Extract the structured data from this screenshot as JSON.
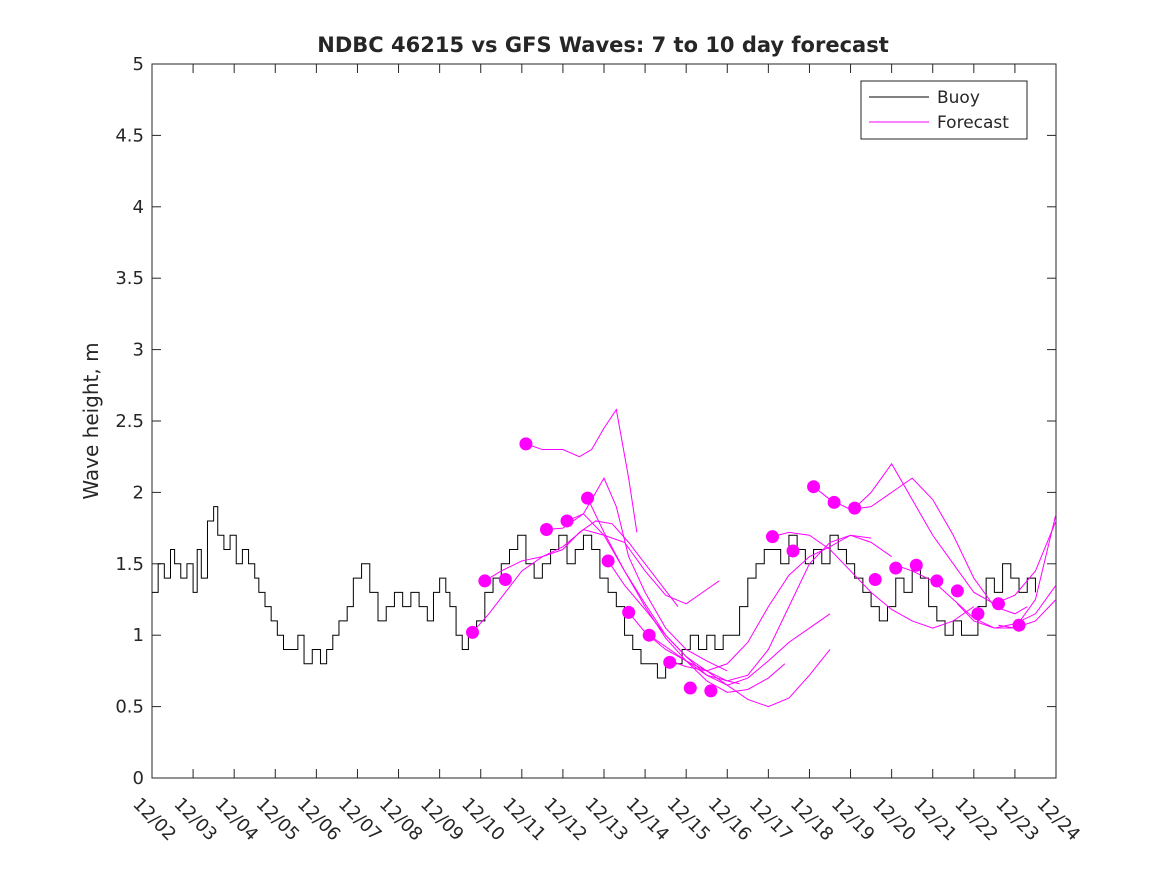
{
  "chart_data": {
    "type": "line",
    "title": "NDBC 46215 vs GFS Waves: 7 to 10 day forecast",
    "xlabel": "",
    "ylabel": "Wave height, m",
    "xlim": [
      0,
      22
    ],
    "ylim": [
      0,
      5
    ],
    "yticks": [
      0,
      0.5,
      1,
      1.5,
      2,
      2.5,
      3,
      3.5,
      4,
      4.5,
      5
    ],
    "ytick_labels": [
      "0",
      "0.5",
      "1",
      "1.5",
      "2",
      "2.5",
      "3",
      "3.5",
      "4",
      "4.5",
      "5"
    ],
    "xticks": [
      0,
      1,
      2,
      3,
      4,
      5,
      6,
      7,
      8,
      9,
      10,
      11,
      12,
      13,
      14,
      15,
      16,
      17,
      18,
      19,
      20,
      21,
      22
    ],
    "xtick_labels": [
      "12/02",
      "12/03",
      "12/04",
      "12/05",
      "12/06",
      "12/07",
      "12/08",
      "12/09",
      "12/10",
      "12/11",
      "12/12",
      "12/13",
      "12/14",
      "12/15",
      "12/16",
      "12/17",
      "12/18",
      "12/19",
      "12/20",
      "12/21",
      "12/22",
      "12/23",
      "12/24"
    ],
    "legend": {
      "location": "top-right",
      "entries": [
        {
          "label": "Buoy",
          "color": "#000000",
          "style": "line"
        },
        {
          "label": "Forecast",
          "color": "#ff00ff",
          "style": "line"
        }
      ]
    },
    "series": [
      {
        "name": "Buoy",
        "color": "#000000",
        "x": [
          0,
          0.15,
          0.3,
          0.45,
          0.55,
          0.7,
          0.85,
          1.0,
          1.1,
          1.2,
          1.35,
          1.5,
          1.6,
          1.75,
          1.9,
          2.05,
          2.2,
          2.35,
          2.5,
          2.6,
          2.75,
          2.9,
          3.05,
          3.2,
          3.4,
          3.55,
          3.7,
          3.9,
          4.1,
          4.25,
          4.4,
          4.55,
          4.75,
          4.9,
          5.1,
          5.3,
          5.5,
          5.7,
          5.9,
          6.1,
          6.3,
          6.5,
          6.7,
          6.85,
          7.0,
          7.15,
          7.25,
          7.4,
          7.55,
          7.7,
          7.9,
          8.1,
          8.3,
          8.5,
          8.7,
          8.9,
          9.1,
          9.3,
          9.5,
          9.7,
          9.9,
          10.1,
          10.3,
          10.5,
          10.7,
          10.9,
          11.1,
          11.3,
          11.5,
          11.7,
          11.9,
          12.1,
          12.3,
          12.5,
          12.7,
          12.9,
          13.1,
          13.3,
          13.5,
          13.7,
          13.9,
          14.1,
          14.3,
          14.5,
          14.7,
          14.9,
          15.1,
          15.3,
          15.5,
          15.7,
          15.9,
          16.1,
          16.3,
          16.5,
          16.7,
          16.9,
          17.1,
          17.3,
          17.5,
          17.7,
          17.9,
          18.1,
          18.3,
          18.5,
          18.7,
          18.9,
          19.1,
          19.3,
          19.5,
          19.7,
          19.9,
          20.1,
          20.3,
          20.5,
          20.7,
          20.9,
          21.1,
          21.3,
          21.5
        ],
        "values": [
          1.3,
          1.5,
          1.4,
          1.6,
          1.5,
          1.4,
          1.5,
          1.3,
          1.6,
          1.4,
          1.8,
          1.9,
          1.7,
          1.6,
          1.7,
          1.5,
          1.6,
          1.5,
          1.4,
          1.3,
          1.2,
          1.1,
          1.0,
          0.9,
          0.9,
          1.0,
          0.8,
          0.9,
          0.8,
          0.9,
          1.0,
          1.1,
          1.2,
          1.4,
          1.5,
          1.3,
          1.1,
          1.2,
          1.3,
          1.2,
          1.3,
          1.2,
          1.1,
          1.3,
          1.4,
          1.3,
          1.2,
          1.0,
          0.9,
          1.0,
          1.1,
          1.3,
          1.4,
          1.5,
          1.6,
          1.7,
          1.5,
          1.4,
          1.5,
          1.6,
          1.7,
          1.5,
          1.6,
          1.7,
          1.6,
          1.4,
          1.3,
          1.2,
          1.0,
          0.9,
          0.8,
          0.8,
          0.7,
          0.8,
          0.8,
          0.9,
          1.0,
          0.9,
          1.0,
          0.9,
          1.0,
          1.0,
          1.2,
          1.4,
          1.5,
          1.6,
          1.6,
          1.5,
          1.7,
          1.6,
          1.5,
          1.6,
          1.5,
          1.7,
          1.6,
          1.5,
          1.4,
          1.3,
          1.2,
          1.1,
          1.2,
          1.4,
          1.3,
          1.5,
          1.4,
          1.2,
          1.1,
          1.0,
          1.1,
          1.0,
          1.0,
          1.2,
          1.4,
          1.3,
          1.5,
          1.4,
          1.3,
          1.4,
          1.3
        ]
      },
      {
        "name": "Forecast",
        "color": "#ff00ff",
        "runs": [
          {
            "x": [
              7.8,
              8.2,
              8.6,
              9.0,
              9.5,
              10.0,
              10.4,
              10.8,
              11.2,
              11.6,
              12.0,
              12.4,
              12.8
            ],
            "values": [
              1.02,
              1.15,
              1.3,
              1.45,
              1.55,
              1.6,
              1.72,
              1.8,
              1.78,
              1.65,
              1.5,
              1.35,
              1.2
            ]
          },
          {
            "x": [
              8.1,
              8.5,
              9.0,
              9.5,
              10.0,
              10.5,
              11.0,
              11.5,
              12.0,
              12.5,
              13.0,
              13.5,
              13.8
            ],
            "values": [
              1.38,
              1.45,
              1.52,
              1.55,
              1.62,
              1.74,
              1.7,
              1.65,
              1.45,
              1.28,
              1.22,
              1.32,
              1.38
            ]
          },
          {
            "x": [
              9.1,
              9.5,
              10.0,
              10.4,
              10.7,
              11.0,
              11.3,
              11.6,
              11.8
            ],
            "values": [
              2.34,
              2.3,
              2.3,
              2.25,
              2.3,
              2.45,
              2.58,
              2.1,
              1.72
            ]
          },
          {
            "x": [
              9.6,
              10.0,
              10.5,
              11.0,
              11.3,
              11.6,
              12.0,
              12.5,
              13.0,
              13.5,
              14.0
            ],
            "values": [
              1.74,
              1.75,
              1.85,
              2.1,
              1.9,
              1.55,
              1.3,
              1.05,
              0.9,
              0.82,
              0.75
            ]
          },
          {
            "x": [
              10.1,
              10.5,
              11.0,
              11.5,
              12.0,
              12.5,
              13.0,
              13.5,
              14.0,
              14.3
            ],
            "values": [
              1.8,
              1.85,
              1.7,
              1.45,
              1.22,
              1.0,
              0.85,
              0.75,
              0.68,
              0.66
            ]
          },
          {
            "x": [
              10.6,
              11.0,
              11.5,
              12.0,
              12.5,
              13.0,
              13.5,
              14.0,
              14.5,
              15.0,
              15.4
            ],
            "values": [
              1.96,
              1.72,
              1.45,
              1.2,
              0.98,
              0.82,
              0.68,
              0.6,
              0.62,
              0.7,
              0.8
            ]
          },
          {
            "x": [
              11.1,
              11.5,
              12.0,
              12.5,
              13.0,
              13.5,
              14.0,
              14.5,
              15.0,
              15.5,
              16.0,
              16.5
            ],
            "values": [
              1.52,
              1.35,
              1.18,
              1.0,
              0.85,
              0.72,
              0.65,
              0.7,
              0.82,
              0.95,
              1.05,
              1.15
            ]
          },
          {
            "x": [
              11.6,
              12.0,
              12.5,
              13.0,
              13.5,
              14.0,
              14.5,
              15.0,
              15.5,
              16.0,
              16.5
            ],
            "values": [
              1.16,
              1.02,
              0.9,
              0.82,
              0.75,
              0.65,
              0.55,
              0.5,
              0.56,
              0.72,
              0.9
            ]
          },
          {
            "x": [
              12.1,
              12.5,
              13.0,
              13.5,
              14.0,
              14.5,
              15.0,
              15.5,
              16.0,
              16.5,
              17.0,
              17.5
            ],
            "values": [
              1.0,
              0.92,
              0.82,
              0.72,
              0.68,
              0.72,
              0.9,
              1.2,
              1.5,
              1.65,
              1.7,
              1.68
            ]
          },
          {
            "x": [
              12.6,
              13.0,
              13.5,
              14.0,
              14.5,
              15.0,
              15.5,
              16.0,
              16.5,
              17.0,
              17.5,
              18.0
            ],
            "values": [
              0.82,
              0.78,
              0.75,
              0.8,
              0.95,
              1.2,
              1.42,
              1.55,
              1.62,
              1.7,
              1.65,
              1.55
            ]
          },
          {
            "x": [
              15.1,
              15.5,
              16.0,
              16.5,
              17.0,
              17.5,
              18.0,
              18.5,
              19.0,
              19.5,
              20.0
            ],
            "values": [
              1.69,
              1.72,
              1.7,
              1.6,
              1.45,
              1.3,
              1.18,
              1.1,
              1.05,
              1.1,
              1.2
            ]
          },
          {
            "x": [
              16.1,
              16.5,
              17.0,
              17.5,
              18.0,
              18.5,
              19.0,
              19.5,
              20.0,
              20.5,
              21.0,
              21.3
            ],
            "values": [
              2.04,
              1.95,
              1.88,
              1.9,
              2.0,
              2.1,
              1.95,
              1.7,
              1.4,
              1.2,
              1.15,
              1.2
            ]
          },
          {
            "x": [
              17.1,
              17.5,
              18.0,
              18.5,
              19.0,
              19.5,
              20.0,
              20.5,
              21.0,
              21.5,
              22.0
            ],
            "values": [
              1.89,
              2.0,
              2.2,
              1.95,
              1.7,
              1.5,
              1.3,
              1.22,
              1.28,
              1.45,
              1.8
            ]
          },
          {
            "x": [
              18.1,
              18.5,
              19.0,
              19.5,
              20.0,
              20.5,
              21.0,
              21.5,
              22.0
            ],
            "values": [
              1.49,
              1.45,
              1.38,
              1.25,
              1.12,
              1.05,
              1.05,
              1.1,
              1.25
            ]
          },
          {
            "x": [
              19.6,
              20.0,
              20.5,
              21.0,
              21.5,
              22.0
            ],
            "values": [
              1.22,
              1.1,
              1.05,
              1.08,
              1.15,
              1.35
            ]
          },
          {
            "x": [
              20.6,
              21.0,
              21.5,
              22.0
            ],
            "values": [
              1.07,
              1.05,
              1.25,
              1.85
            ]
          }
        ],
        "markers": {
          "x": [
            7.8,
            8.1,
            8.6,
            9.1,
            9.6,
            10.1,
            10.6,
            11.1,
            11.6,
            12.1,
            12.6,
            13.1,
            13.6,
            15.1,
            15.6,
            16.1,
            16.6,
            17.1,
            17.6,
            18.1,
            18.6,
            19.1,
            19.6,
            20.1,
            20.6,
            21.1
          ],
          "values": [
            1.02,
            1.38,
            1.39,
            2.34,
            1.74,
            1.8,
            1.96,
            1.52,
            1.16,
            1.0,
            0.81,
            0.63,
            0.61,
            1.69,
            1.59,
            2.04,
            1.93,
            1.89,
            1.39,
            1.47,
            1.49,
            1.38,
            1.31,
            1.15,
            1.22,
            1.07
          ]
        }
      }
    ]
  }
}
